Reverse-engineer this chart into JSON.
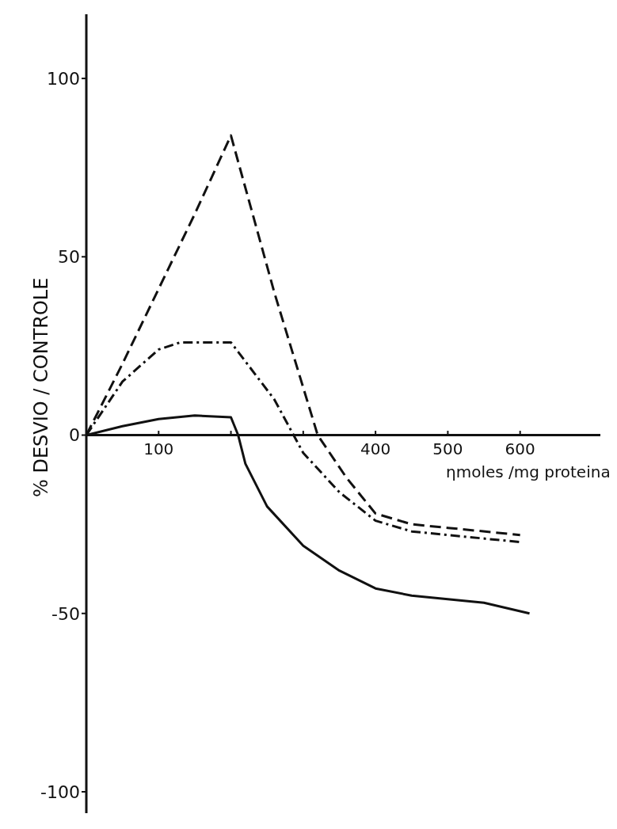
{
  "chart_data": {
    "type": "line",
    "xlabel": "ηmoles /mg proteina",
    "ylabel": "% DESVIO / CONTROLE",
    "xlim": [
      0,
      711
    ],
    "ylim": [
      -106,
      118
    ],
    "xticks": [
      {
        "value": 100,
        "label": "100"
      },
      {
        "value": 200,
        "label": null
      },
      {
        "value": 300,
        "label": null
      },
      400,
      500,
      600
    ],
    "yticks": [
      -100,
      -50,
      0,
      50,
      100
    ],
    "marker": "none",
    "series": [
      {
        "color": "#111111",
        "line_style": "dashed",
        "x": [
          0,
          50,
          100,
          150,
          200,
          260,
          320,
          360,
          400,
          450,
          500,
          600
        ],
        "values": [
          0,
          20,
          41,
          62,
          84,
          40,
          0,
          -12,
          -22,
          -25,
          -26,
          -28
        ]
      },
      {
        "color": "#111111",
        "line_style": "dotted",
        "x": [
          0,
          50,
          100,
          130,
          200,
          260,
          300,
          350,
          400,
          450,
          500,
          600
        ],
        "values": [
          0,
          15,
          24,
          26,
          26,
          10,
          -5,
          -16,
          -24,
          -27,
          -28,
          -30
        ]
      },
      {
        "color": "#111111",
        "line_style": "solid",
        "x": [
          0,
          50,
          100,
          150,
          200,
          210,
          220,
          250,
          300,
          350,
          400,
          450,
          500,
          550,
          613
        ],
        "values": [
          0,
          2.5,
          4.5,
          5.5,
          5,
          0,
          -8,
          -20,
          -31,
          -38,
          -43,
          -45,
          -46,
          -47,
          -50
        ]
      }
    ]
  }
}
